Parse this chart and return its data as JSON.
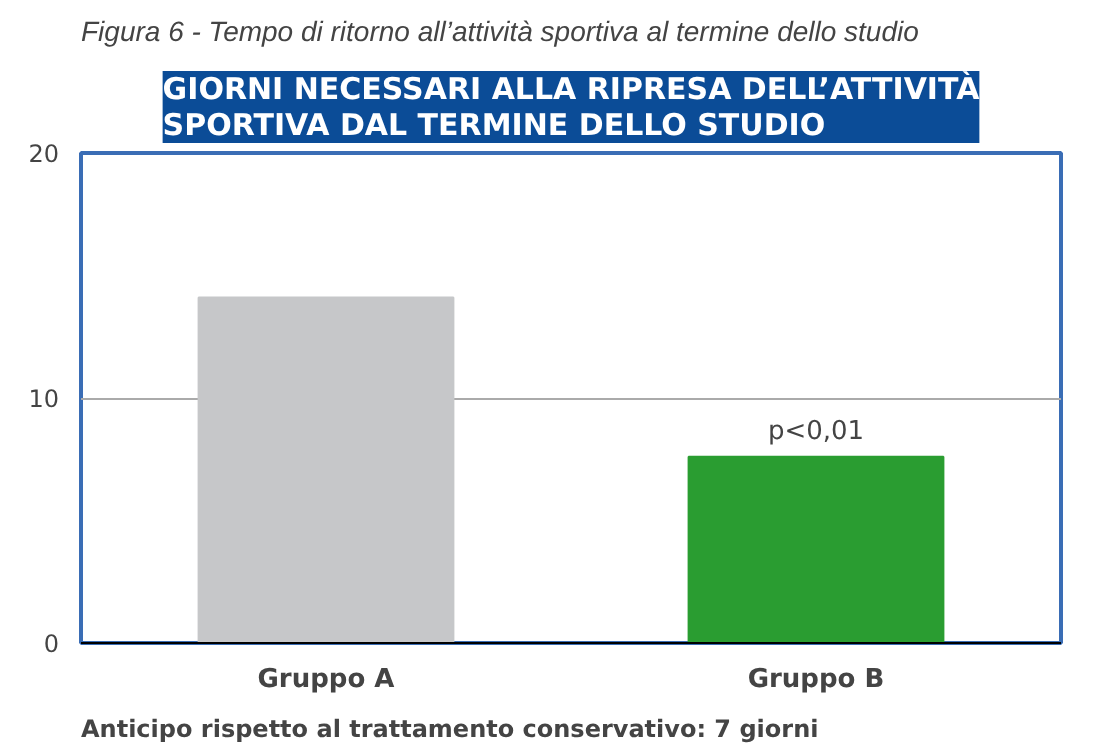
{
  "chart_data": {
    "type": "bar",
    "title": "Figura 6 - Tempo di ritorno all’attività sportiva al termine dello studio",
    "subtitle": "GIORNI NECESSARI ALLA RIPRESA DELL’ATTIVITÀ\nSPORTIVA DAL TERMINE DELLO STUDIO",
    "categories": [
      "Gruppo A",
      "Gruppo B"
    ],
    "values": [
      14.1,
      7.6
    ],
    "colors": [
      "#c6c7c9",
      "#2a9d31"
    ],
    "ylim": [
      0,
      20
    ],
    "yticks": [
      0,
      10,
      20
    ],
    "grid": "y",
    "annotations": [
      {
        "text": "p<0,01",
        "x": "Gruppo B",
        "y": 7.6
      },
      "Anticipo rispetto al trattamento conservativo: 7 giorni"
    ]
  }
}
